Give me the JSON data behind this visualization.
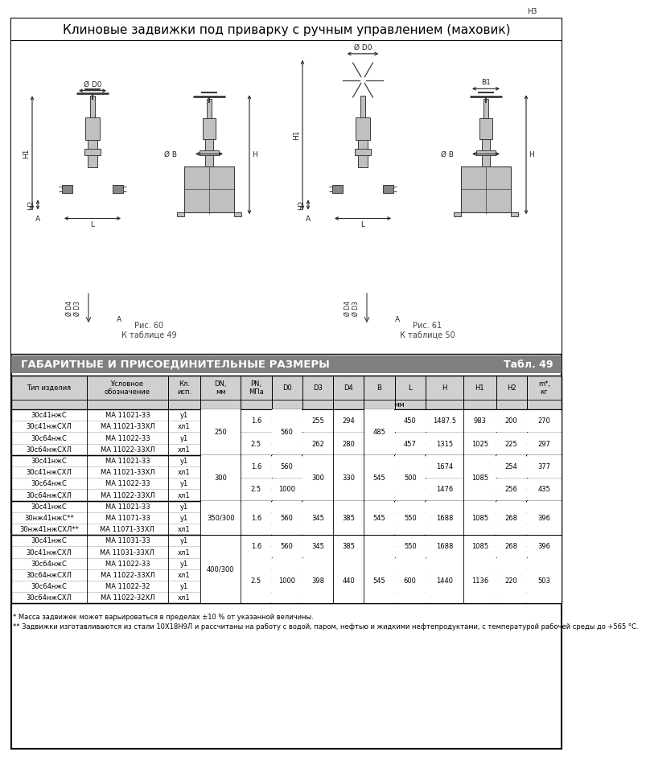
{
  "title": "Клиновые задвижки под приварку с ручным управлением (маховик)",
  "section_title": "ГАБАРИТНЫЕ И ПРИСОЕДИНИТЕЛЬНЫЕ РАЗМЕРЫ",
  "table_num": "Табл. 49",
  "fig60_caption": "Рис. 60\nК таблице 49",
  "fig61_caption": "Рис. 61\nК таблице 50",
  "footnote1": "* Масса задвижек может варьироваться в пределах ±10 % от указанной величины.",
  "footnote2": "** Задвижки изготавливаются из стали 10Х18Н9Л и рассчитаны на работу с водой, паром, нефтью и жидкими нефтепродуктами, с температурой рабочей среды до +565 °С.",
  "bg_color": "#ffffff",
  "header_bg": "#d0d0d0",
  "section_bg": "#808080",
  "col_widths_rel": [
    1.35,
    1.45,
    0.58,
    0.72,
    0.55,
    0.55,
    0.55,
    0.55,
    0.55,
    0.55,
    0.68,
    0.58,
    0.55,
    0.62
  ],
  "headers": [
    "Тип изделия",
    "Условное\nобозначение",
    "Кл.\nисп.",
    "DN,\nмм",
    "PN,\nМПа",
    "D0",
    "D3",
    "D4",
    "B",
    "L",
    "H",
    "H1",
    "H2",
    "m*,\nкг"
  ],
  "row_data": [
    [
      "30с41нжС",
      "МА 11021-33",
      "у1"
    ],
    [
      "30с41нжСХЛ",
      "МА 11021-33ХЛ",
      "хл1"
    ],
    [
      "30с64нжС",
      "МА 11022-33",
      "у1"
    ],
    [
      "30с64нжСХЛ",
      "МА 11022-33ХЛ",
      "хл1"
    ],
    [
      "30с41нжС",
      "МА 11021-33",
      "у1"
    ],
    [
      "30с41нжСХЛ",
      "МА 11021-33ХЛ",
      "хл1"
    ],
    [
      "30с64нжС",
      "МА 11022-33",
      "у1"
    ],
    [
      "30с64нжСХЛ",
      "МА 11022-33ХЛ",
      "хл1"
    ],
    [
      "30с41нжС",
      "МА 11021-33",
      "у1"
    ],
    [
      "30нж41нжС**",
      "МА 11071-33",
      "у1"
    ],
    [
      "30нж41нжСХЛ**",
      "МА 11071-33ХЛ",
      "хл1"
    ],
    [
      "30с41нжС",
      "МА 11031-33",
      "у1"
    ],
    [
      "30с41нжСХЛ",
      "МА 11031-33ХЛ",
      "хл1"
    ],
    [
      "30с64нжС",
      "МА 11022-33",
      "у1"
    ],
    [
      "30с64нжСХЛ",
      "МА 11022-33ХЛ",
      "хл1"
    ],
    [
      "30с64нжС",
      "МА 11022-32",
      "у1"
    ],
    [
      "30с64нжСХЛ",
      "МА 11022-32ХЛ",
      "хл1"
    ]
  ],
  "merged_cells": {
    "DN": [
      [
        0,
        4,
        "250"
      ],
      [
        4,
        8,
        "300"
      ],
      [
        8,
        11,
        "350/300"
      ],
      [
        11,
        17,
        "400/300"
      ]
    ],
    "PN": [
      [
        0,
        2,
        "1.6"
      ],
      [
        2,
        4,
        "2.5"
      ],
      [
        4,
        6,
        "1.6"
      ],
      [
        6,
        8,
        "2.5"
      ],
      [
        8,
        11,
        "1.6"
      ],
      [
        11,
        13,
        "1.6"
      ],
      [
        13,
        17,
        "2.5"
      ]
    ],
    "D0": [
      [
        0,
        4,
        "560"
      ],
      [
        4,
        6,
        "560"
      ],
      [
        6,
        8,
        "1000"
      ],
      [
        8,
        11,
        "560"
      ],
      [
        11,
        13,
        "560"
      ],
      [
        13,
        17,
        "1000"
      ]
    ],
    "D3": [
      [
        0,
        2,
        "255"
      ],
      [
        2,
        4,
        "262"
      ],
      [
        4,
        8,
        "300"
      ],
      [
        8,
        11,
        "345"
      ],
      [
        11,
        13,
        "345"
      ],
      [
        13,
        17,
        "398"
      ]
    ],
    "D4": [
      [
        0,
        2,
        "294"
      ],
      [
        2,
        4,
        "280"
      ],
      [
        4,
        8,
        "330"
      ],
      [
        8,
        11,
        "385"
      ],
      [
        11,
        13,
        "385"
      ],
      [
        13,
        17,
        "440"
      ]
    ],
    "B": [
      [
        0,
        4,
        "485"
      ],
      [
        4,
        8,
        "545"
      ],
      [
        8,
        11,
        "545"
      ],
      [
        11,
        13,
        ""
      ],
      [
        13,
        17,
        "545"
      ]
    ],
    "L": [
      [
        0,
        2,
        "450"
      ],
      [
        2,
        4,
        "457"
      ],
      [
        4,
        8,
        "500"
      ],
      [
        8,
        11,
        "550"
      ],
      [
        11,
        13,
        "550"
      ],
      [
        13,
        17,
        "600"
      ]
    ],
    "H": [
      [
        0,
        2,
        "1487.5"
      ],
      [
        2,
        4,
        "1315"
      ],
      [
        4,
        6,
        "1674"
      ],
      [
        6,
        8,
        "1476"
      ],
      [
        8,
        11,
        "1688"
      ],
      [
        11,
        13,
        "1688"
      ],
      [
        13,
        17,
        "1440"
      ]
    ],
    "H1": [
      [
        0,
        2,
        "983"
      ],
      [
        2,
        4,
        "1025"
      ],
      [
        4,
        8,
        "1085"
      ],
      [
        8,
        11,
        "1085"
      ],
      [
        11,
        13,
        "1085"
      ],
      [
        13,
        17,
        "1136"
      ]
    ],
    "H2": [
      [
        0,
        2,
        "200"
      ],
      [
        2,
        4,
        "225"
      ],
      [
        4,
        6,
        "254"
      ],
      [
        6,
        8,
        "256"
      ],
      [
        8,
        11,
        "268"
      ],
      [
        11,
        13,
        "268"
      ],
      [
        13,
        17,
        "220"
      ]
    ],
    "m": [
      [
        0,
        2,
        "270"
      ],
      [
        2,
        4,
        "297"
      ],
      [
        4,
        6,
        "377"
      ],
      [
        6,
        8,
        "435"
      ],
      [
        8,
        11,
        "396"
      ],
      [
        11,
        13,
        "396"
      ],
      [
        13,
        17,
        "503"
      ]
    ]
  },
  "group_separators": [
    4,
    8,
    11
  ]
}
